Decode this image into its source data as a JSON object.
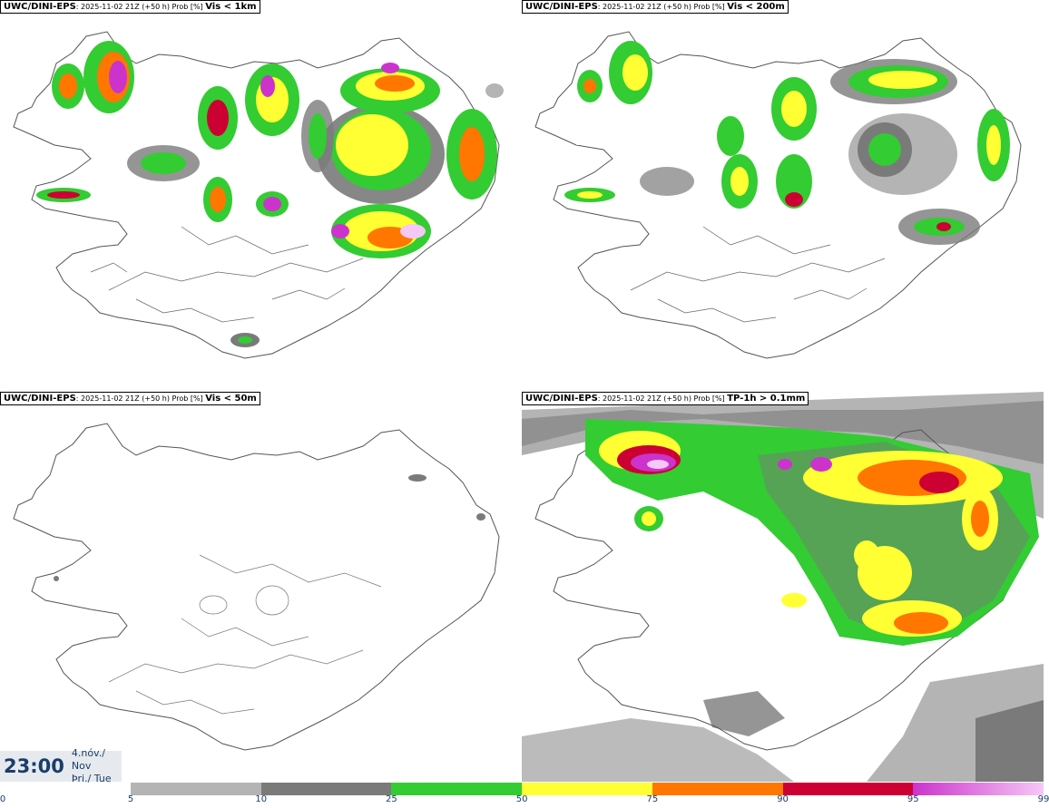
{
  "panels": [
    {
      "model": "UWC/DINI-EPS",
      "info": ": 2025-11-02 21Z (+50 h) Prob [%] ",
      "threshold": "Vis < 1km"
    },
    {
      "model": "UWC/DINI-EPS",
      "info": ": 2025-11-02 21Z (+50 h) Prob [%] ",
      "threshold": "Vis < 200m"
    },
    {
      "model": "UWC/DINI-EPS",
      "info": ": 2025-11-02 21Z (+50 h) Prob [%] ",
      "threshold": "Vis < 50m"
    },
    {
      "model": "UWC/DINI-EPS",
      "info": ": 2025-11-02 21Z (+50 h) Prob [%] ",
      "threshold": "TP-1h > 0.1mm"
    }
  ],
  "time": {
    "clock": "23:00",
    "date_line": "4.nóv./ Nov",
    "day_line": "Þri./ Tue"
  },
  "colorbar": {
    "ticks": [
      "0",
      "5",
      "10",
      "25",
      "50",
      "75",
      "90",
      "95",
      "99"
    ],
    "colors": [
      "#ffffff",
      "#b4b4b4",
      "#7a7a7a",
      "#33cc33",
      "#ffff33",
      "#ff7700",
      "#cc0033",
      "#cc33cc"
    ],
    "last_fade": "#f6c8f6"
  }
}
